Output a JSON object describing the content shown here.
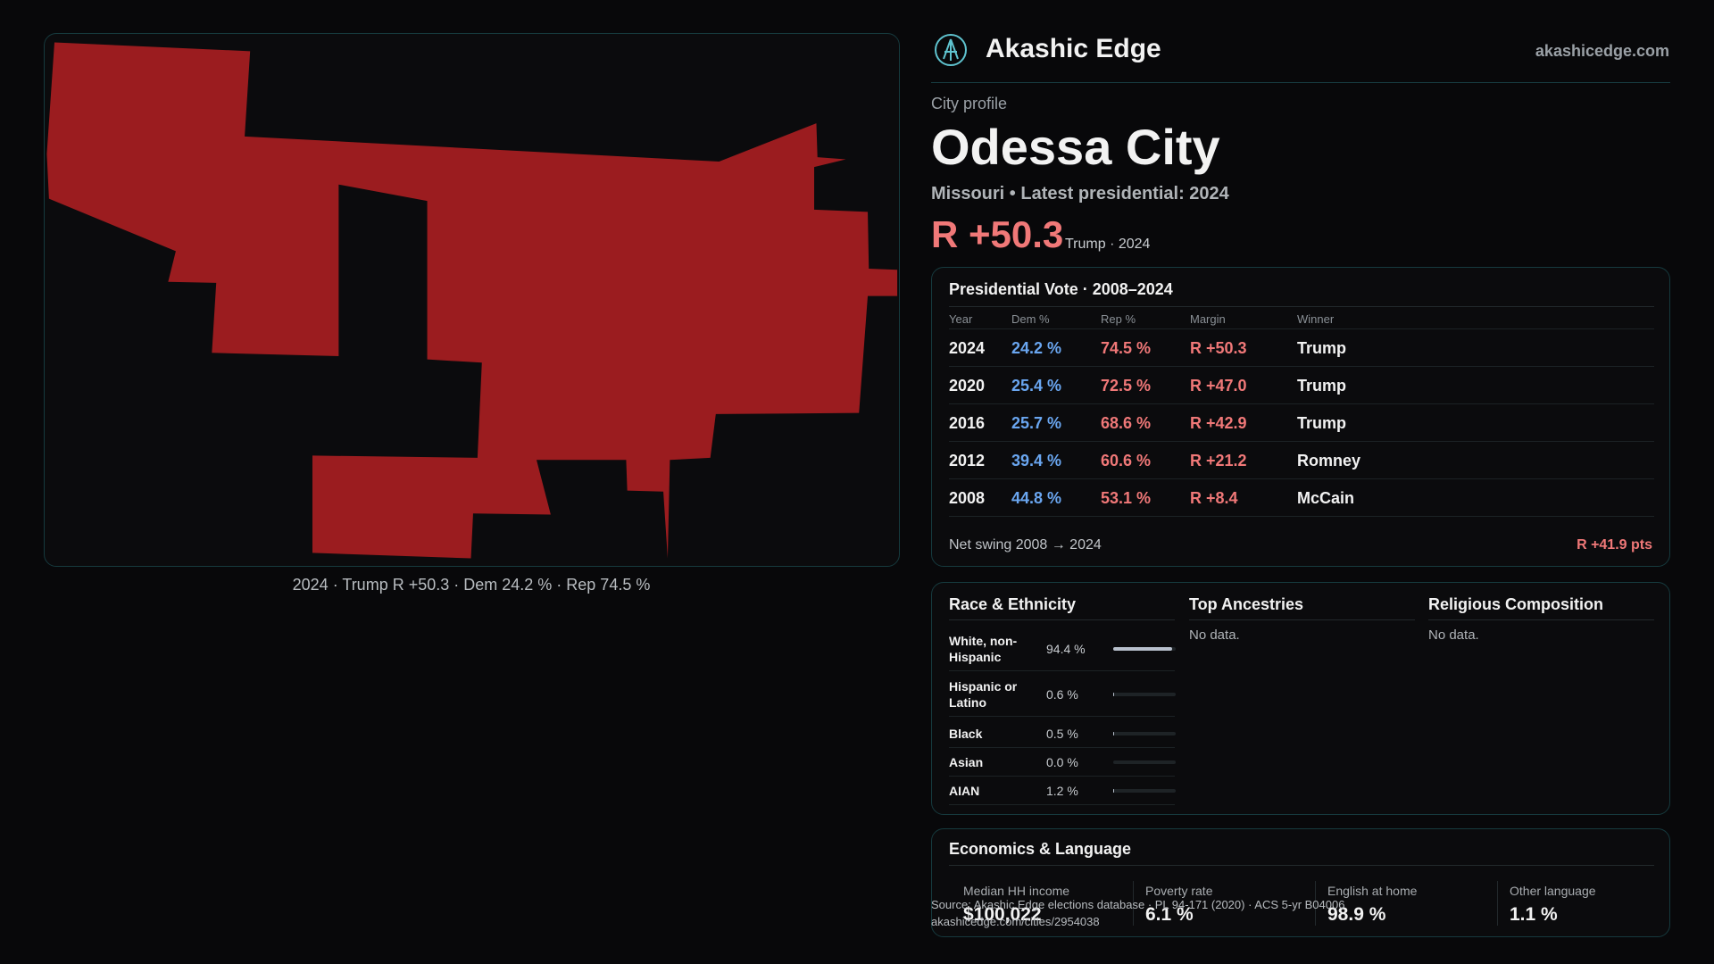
{
  "brand": {
    "name": "Akashic Edge",
    "url": "akashicedge.com"
  },
  "profile": {
    "kicker": "City profile",
    "title": "Odessa City",
    "subtitle": "Missouri • Latest presidential: 2024",
    "margin": "R +50.3",
    "margin_note": "Trump · 2024"
  },
  "map_caption": "2024 · Trump R +50.3 · Dem 24.2 % · Rep 74.5 %",
  "vote_table": {
    "title": "Presidential Vote · 2008–2024",
    "headers": [
      "Year",
      "Dem %",
      "Rep %",
      "Margin",
      "Winner"
    ],
    "rows": [
      [
        "2024",
        "24.2 %",
        "74.5 %",
        "R +50.3",
        "Trump"
      ],
      [
        "2020",
        "25.4 %",
        "72.5 %",
        "R +47.0",
        "Trump"
      ],
      [
        "2016",
        "25.7 %",
        "68.6 %",
        "R +42.9",
        "Trump"
      ],
      [
        "2012",
        "39.4 %",
        "60.6 %",
        "R +21.2",
        "Romney"
      ],
      [
        "2008",
        "44.8 %",
        "53.1 %",
        "R +8.4",
        "McCain"
      ]
    ],
    "footer_label": "Net swing 2008 → 2024",
    "footer_value": "R +41.9 pts"
  },
  "race": {
    "title": "Race & Ethnicity",
    "rows": [
      {
        "label": "White, non-Hispanic",
        "value": 94.4,
        "value_label": "94.4 %"
      },
      {
        "label": "Hispanic or Latino",
        "value": 0.6,
        "value_label": "0.6 %"
      },
      {
        "label": "Black",
        "value": 0.5,
        "value_label": "0.5 %"
      },
      {
        "label": "Asian",
        "value": 0.0,
        "value_label": "0.0 %"
      },
      {
        "label": "AIAN",
        "value": 1.2,
        "value_label": "1.2 %"
      }
    ]
  },
  "ancestries": {
    "title": "Top Ancestries",
    "empty": "No data."
  },
  "religion": {
    "title": "Religious Composition",
    "empty": "No data."
  },
  "economics": {
    "title": "Economics & Language",
    "stats": [
      {
        "label": "Median HH income",
        "value": "$100,022"
      },
      {
        "label": "Poverty rate",
        "value": "6.1 %"
      },
      {
        "label": "English at home",
        "value": "98.9 %"
      },
      {
        "label": "Other language",
        "value": "1.1 %"
      }
    ]
  },
  "source": {
    "text": "Source: Akashic Edge elections database · PL 94-171 (2020) · ACS 5-yr B04006",
    "url": "akashicedge.com/cities/2954038"
  }
}
